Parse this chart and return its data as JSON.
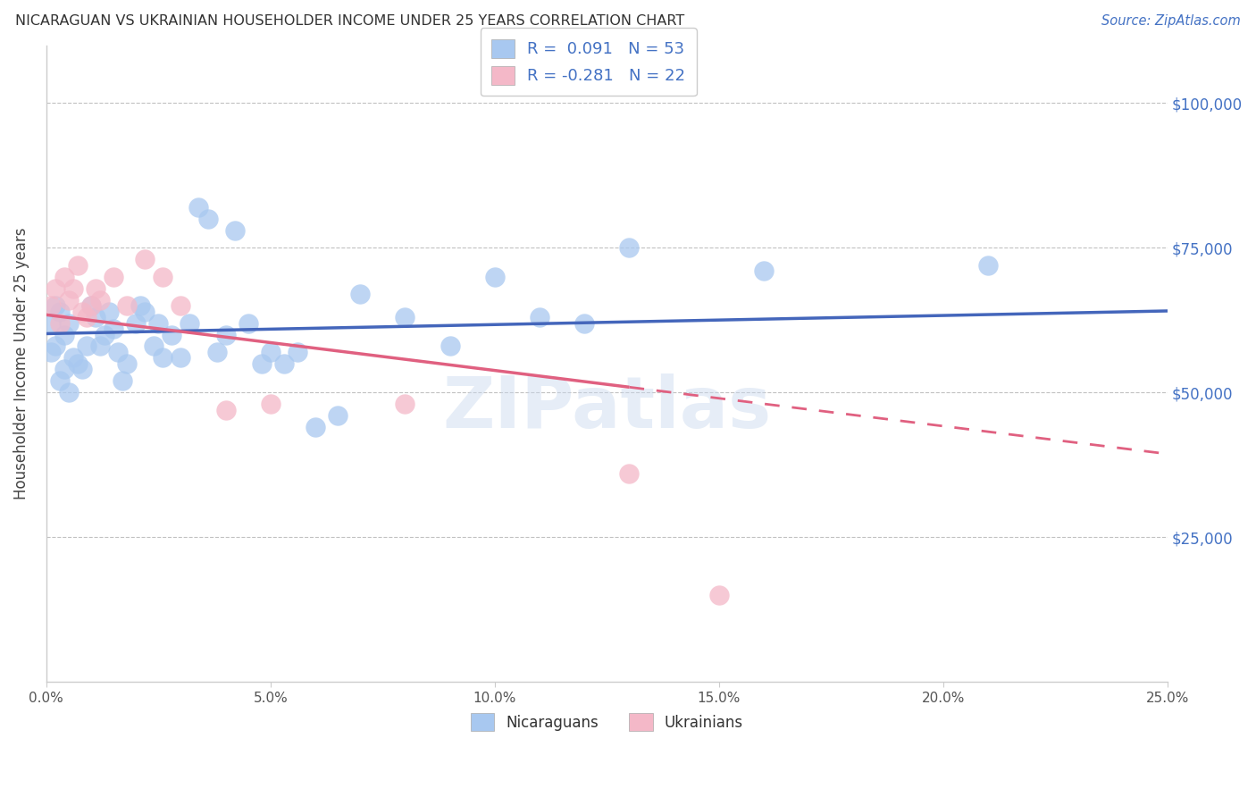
{
  "title": "NICARAGUAN VS UKRAINIAN HOUSEHOLDER INCOME UNDER 25 YEARS CORRELATION CHART",
  "source": "Source: ZipAtlas.com",
  "ylabel": "Householder Income Under 25 years",
  "r_nicaraguan": 0.091,
  "n_nicaraguan": 53,
  "r_ukrainian": -0.281,
  "n_ukrainian": 22,
  "blue_color": "#A8C8F0",
  "pink_color": "#F4B8C8",
  "line_blue": "#4466BB",
  "line_pink": "#E06080",
  "watermark": "ZIPatlas",
  "xlim": [
    0.0,
    0.25
  ],
  "ylim": [
    0,
    110000
  ],
  "xticks": [
    0.0,
    0.05,
    0.1,
    0.15,
    0.2,
    0.25
  ],
  "xticklabels": [
    "0.0%",
    "5.0%",
    "10.0%",
    "15.0%",
    "20.0%",
    "25.0%"
  ],
  "yticks": [
    25000,
    50000,
    75000,
    100000
  ],
  "yticklabels": [
    "$25,000",
    "$50,000",
    "$75,000",
    "$100,000"
  ],
  "nicaraguan_x": [
    0.001,
    0.001,
    0.002,
    0.002,
    0.003,
    0.003,
    0.004,
    0.004,
    0.005,
    0.005,
    0.006,
    0.007,
    0.008,
    0.009,
    0.01,
    0.011,
    0.012,
    0.013,
    0.014,
    0.015,
    0.016,
    0.017,
    0.018,
    0.02,
    0.021,
    0.022,
    0.024,
    0.025,
    0.026,
    0.028,
    0.03,
    0.032,
    0.034,
    0.036,
    0.038,
    0.04,
    0.042,
    0.045,
    0.048,
    0.05,
    0.053,
    0.056,
    0.06,
    0.065,
    0.07,
    0.08,
    0.09,
    0.1,
    0.11,
    0.12,
    0.13,
    0.16,
    0.21
  ],
  "nicaraguan_y": [
    62000,
    57000,
    65000,
    58000,
    64000,
    52000,
    60000,
    54000,
    62000,
    50000,
    56000,
    55000,
    54000,
    58000,
    65000,
    63000,
    58000,
    60000,
    64000,
    61000,
    57000,
    52000,
    55000,
    62000,
    65000,
    64000,
    58000,
    62000,
    56000,
    60000,
    56000,
    62000,
    82000,
    80000,
    57000,
    60000,
    78000,
    62000,
    55000,
    57000,
    55000,
    57000,
    44000,
    46000,
    67000,
    63000,
    58000,
    70000,
    63000,
    62000,
    75000,
    71000,
    72000
  ],
  "ukrainian_x": [
    0.001,
    0.002,
    0.003,
    0.004,
    0.005,
    0.006,
    0.007,
    0.008,
    0.009,
    0.01,
    0.011,
    0.012,
    0.015,
    0.018,
    0.022,
    0.026,
    0.03,
    0.04,
    0.05,
    0.08,
    0.13,
    0.15
  ],
  "ukrainian_y": [
    65000,
    68000,
    62000,
    70000,
    66000,
    68000,
    72000,
    64000,
    63000,
    65000,
    68000,
    66000,
    70000,
    65000,
    73000,
    70000,
    65000,
    47000,
    48000,
    48000,
    36000,
    15000
  ]
}
